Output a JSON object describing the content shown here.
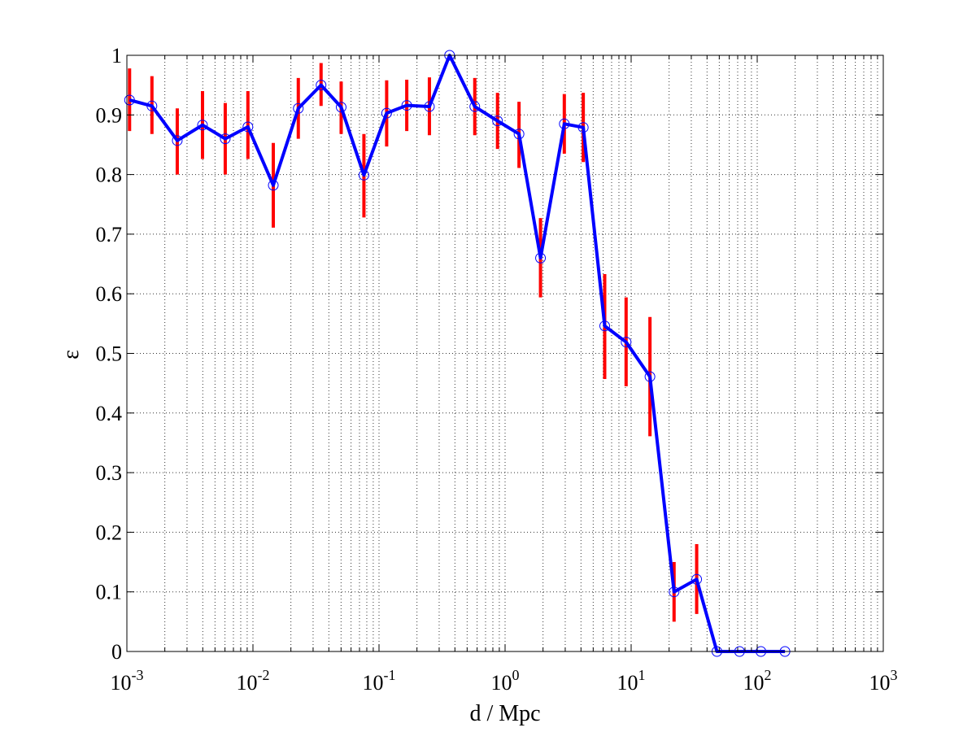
{
  "chart_data": {
    "type": "line",
    "xlabel": "d / Mpc",
    "ylabel": "ε",
    "xscale": "log",
    "xlim": [
      0.001,
      1000
    ],
    "ylim": [
      0,
      1
    ],
    "x_ticks": [
      {
        "base": "10",
        "exp": "-3"
      },
      {
        "base": "10",
        "exp": "-2"
      },
      {
        "base": "10",
        "exp": "-1"
      },
      {
        "base": "10",
        "exp": "0"
      },
      {
        "base": "10",
        "exp": "1"
      },
      {
        "base": "10",
        "exp": "2"
      },
      {
        "base": "10",
        "exp": "3"
      }
    ],
    "y_ticks": [
      "0",
      "0.1",
      "0.2",
      "0.3",
      "0.4",
      "0.5",
      "0.6",
      "0.7",
      "0.8",
      "0.9",
      "1"
    ],
    "grid": true,
    "colors": {
      "line": "#0000ff",
      "errorbar": "#ff0000",
      "marker": "#0000ff",
      "grid": "#333333"
    },
    "series": [
      {
        "x": [
          0.00105,
          0.00158,
          0.00251,
          0.00398,
          0.00603,
          0.00912,
          0.0145,
          0.0229,
          0.0347,
          0.0501,
          0.0759,
          0.115,
          0.166,
          0.251,
          0.363,
          0.575,
          0.871,
          1.29,
          1.91,
          2.95,
          4.17,
          6.17,
          9.12,
          14.1,
          21.9,
          33.1,
          47.9,
          72.4,
          107,
          166
        ],
        "y": [
          0.925,
          0.915,
          0.857,
          0.883,
          0.86,
          0.88,
          0.782,
          0.911,
          0.95,
          0.913,
          0.799,
          0.903,
          0.916,
          0.914,
          1.0,
          0.914,
          0.89,
          0.868,
          0.66,
          0.885,
          0.879,
          0.546,
          0.519,
          0.461,
          0.1,
          0.121,
          0.0,
          0.0,
          0.0,
          0.0
        ],
        "err_low": [
          0.873,
          0.868,
          0.8,
          0.826,
          0.8,
          0.826,
          0.711,
          0.86,
          0.915,
          0.868,
          0.728,
          0.847,
          0.873,
          0.866,
          null,
          0.866,
          0.843,
          0.811,
          0.594,
          0.835,
          0.821,
          0.457,
          0.445,
          0.361,
          0.05,
          0.063,
          null,
          null,
          null,
          null
        ],
        "err_high": [
          0.978,
          0.965,
          0.911,
          0.94,
          0.92,
          0.94,
          0.853,
          0.962,
          0.987,
          0.956,
          0.868,
          0.958,
          0.959,
          0.963,
          null,
          0.962,
          0.937,
          0.922,
          0.727,
          0.935,
          0.937,
          0.633,
          0.594,
          0.561,
          0.15,
          0.18,
          null,
          null,
          null,
          null
        ]
      }
    ]
  }
}
